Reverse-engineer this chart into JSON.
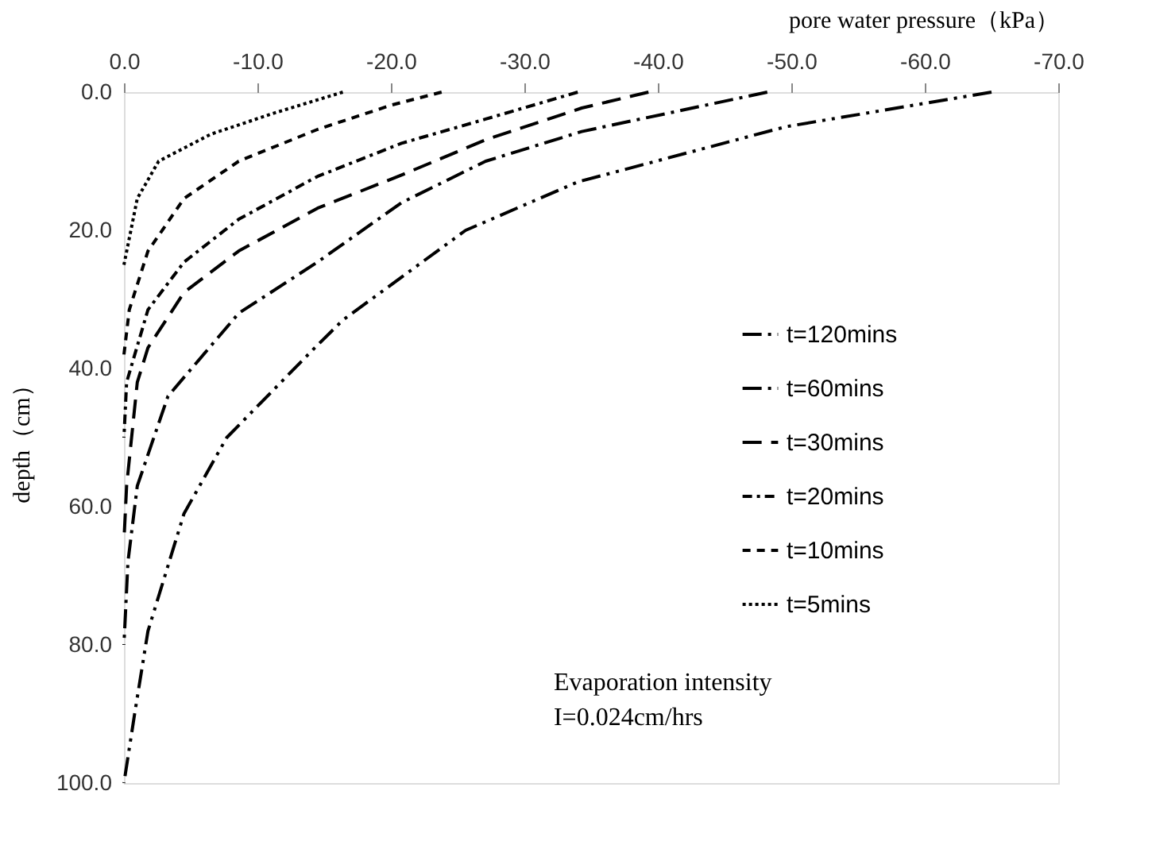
{
  "chart_data": {
    "type": "line",
    "xlabel": "pore water pressure（kPa）",
    "ylabel": "depth（cm）",
    "xlim": [
      0,
      -70
    ],
    "ylim": [
      100,
      0
    ],
    "xticks": [
      {
        "value": 0,
        "label": "0.0"
      },
      {
        "value": -10,
        "label": "-10.0"
      },
      {
        "value": -20,
        "label": "-20.0"
      },
      {
        "value": -30,
        "label": "-30.0"
      },
      {
        "value": -40,
        "label": "-40.0"
      },
      {
        "value": -50,
        "label": "-50.0"
      },
      {
        "value": -60,
        "label": "-60.0"
      },
      {
        "value": -70,
        "label": "-70.0"
      }
    ],
    "yticks": [
      {
        "value": 0,
        "label": "0.0"
      },
      {
        "value": 20,
        "label": "20.0"
      },
      {
        "value": 40,
        "label": "40.0"
      },
      {
        "value": 60,
        "label": "60.0"
      },
      {
        "value": 80,
        "label": "80.0"
      },
      {
        "value": 100,
        "label": "100.0"
      }
    ],
    "grid": false,
    "legend": "right",
    "marker": "none",
    "annotations": [
      "Evaporation intensity",
      "I=0.024cm/hrs"
    ],
    "series": [
      {
        "name": "t=120mins",
        "color": "#000000",
        "line_style": "dashed",
        "x": [
          -65,
          -49.6,
          -34,
          -25.6,
          -16.4,
          -14.3,
          -7.7,
          -4.5,
          -1.8,
          -0.8,
          0
        ],
        "values": [
          0,
          5,
          13,
          20,
          33,
          37,
          50,
          61,
          78,
          90,
          100
        ]
      },
      {
        "name": "t=60mins",
        "color": "#000000",
        "line_style": "dashed",
        "x": [
          -48.2,
          -34.3,
          -27.1,
          -20.8,
          -14.5,
          -8.6,
          -3.3,
          -1,
          -0.3,
          0
        ],
        "values": [
          0,
          5.7,
          10,
          16,
          24.6,
          32,
          44,
          57,
          68,
          80
        ]
      },
      {
        "name": "t=30mins",
        "color": "#000000",
        "line_style": "dashed",
        "x": [
          -39.3,
          -34.3,
          -27.1,
          -20.8,
          -14.5,
          -8.6,
          -4.5,
          -1.8,
          -1,
          -0.2,
          0
        ],
        "values": [
          0,
          2.3,
          6.9,
          12,
          16.8,
          23,
          29,
          37,
          42,
          57,
          65
        ]
      },
      {
        "name": "t=20mins",
        "color": "#000000",
        "line_style": "dashed",
        "x": [
          -34,
          -27.1,
          -20.8,
          -14.5,
          -8.6,
          -4.5,
          -1.8,
          -0.2,
          0
        ],
        "values": [
          0,
          3.9,
          7.4,
          12.2,
          18.4,
          24.6,
          31.5,
          42,
          50
        ]
      },
      {
        "name": "t=10mins",
        "color": "#000000",
        "line_style": "dashed",
        "x": [
          -23.8,
          -20,
          -14.5,
          -8.6,
          -4.5,
          -1.8,
          -0.4,
          0
        ],
        "values": [
          0,
          1.9,
          5.4,
          10,
          15.4,
          23,
          31.5,
          38
        ]
      },
      {
        "name": "t=5mins",
        "color": "#000000",
        "line_style": "dotted",
        "x": [
          -16.4,
          -11.3,
          -6.5,
          -2.6,
          -1,
          0
        ],
        "values": [
          0,
          3,
          6.1,
          10,
          15.4,
          25
        ]
      }
    ]
  }
}
